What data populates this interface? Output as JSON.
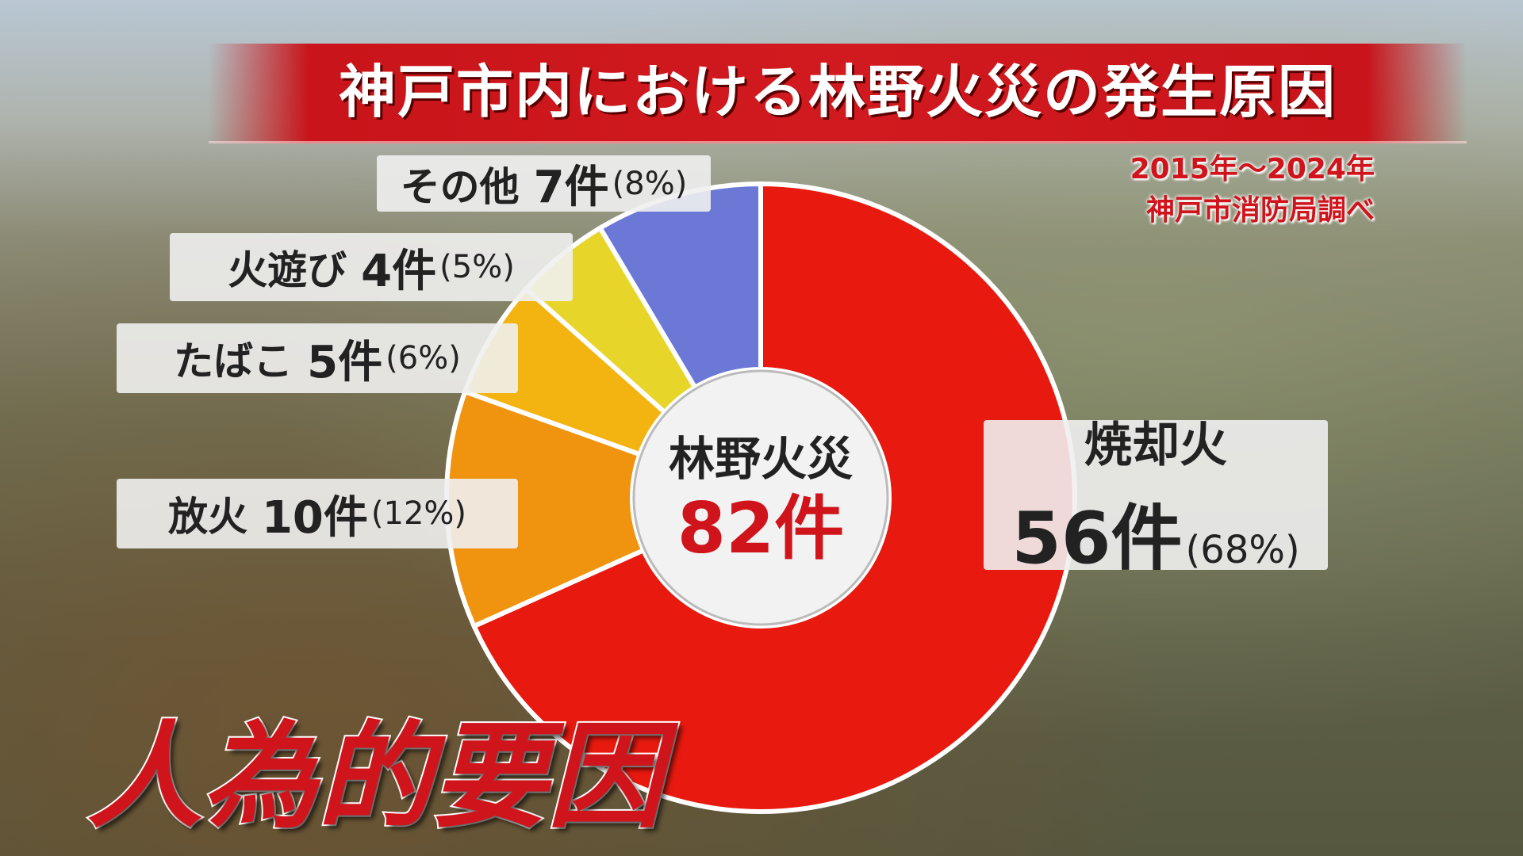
{
  "chart_data": {
    "type": "pie",
    "title": "神戸市内における林野火災の発生原因",
    "subtitle": [
      "2015年～2024年",
      "神戸市消防局調べ"
    ],
    "center_title": "林野火災",
    "total": 82,
    "total_label": "82件",
    "categories": [
      "焼却火",
      "放火",
      "たばこ",
      "火遊び",
      "その他"
    ],
    "values": [
      56,
      10,
      5,
      4,
      7
    ],
    "value_labels": [
      "56件",
      "10件",
      "5件",
      "4件",
      "7件"
    ],
    "percent_labels": [
      "(68%)",
      "(12%)",
      "(6%)",
      "(5%)",
      "(8%)"
    ],
    "colors": [
      "#e8190f",
      "#f0930f",
      "#f3b310",
      "#e8d52a",
      "#6c78d6"
    ],
    "caption": "人為的要因"
  }
}
